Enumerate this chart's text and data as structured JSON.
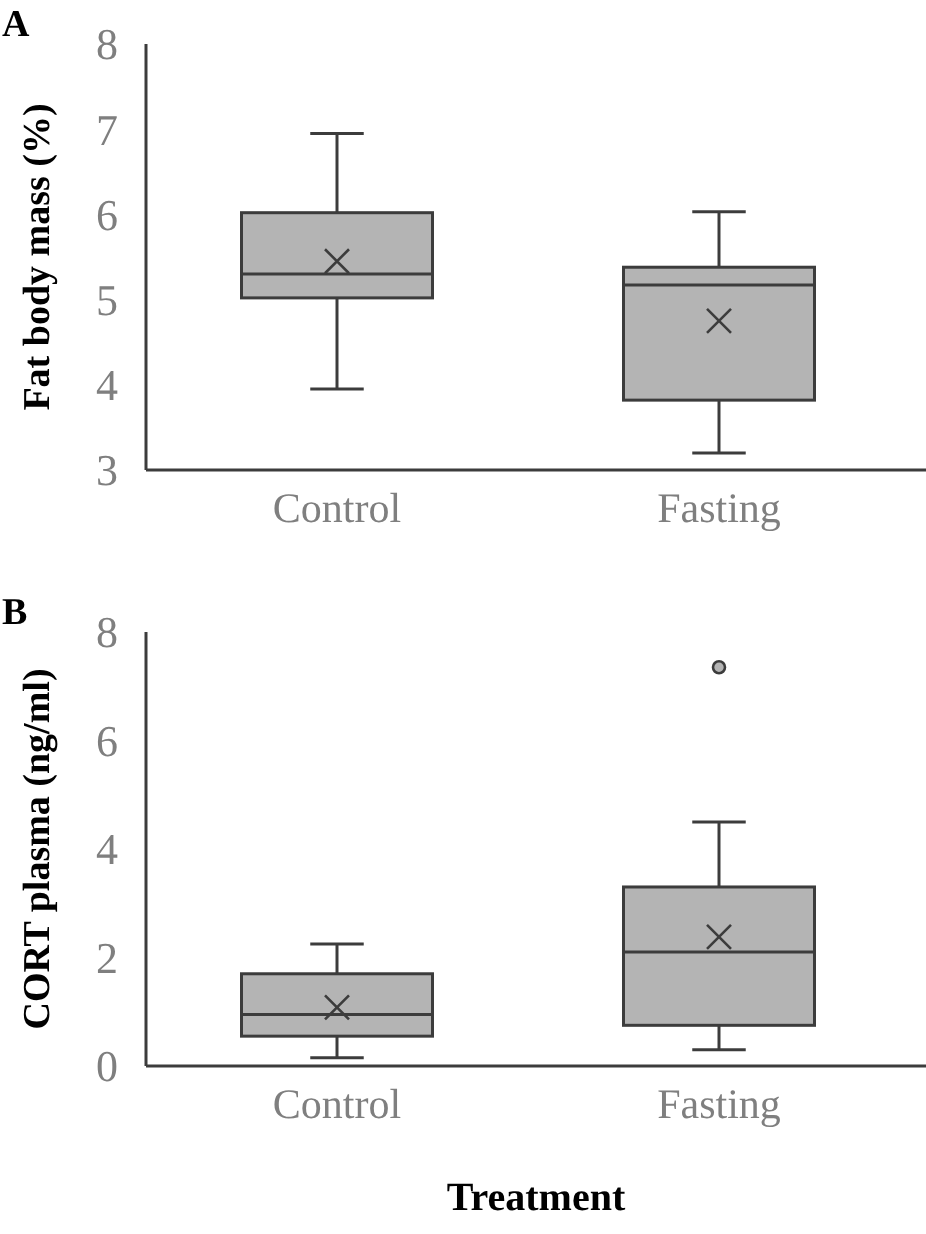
{
  "chart_data": [
    {
      "type": "box",
      "annotations": [
        "A"
      ],
      "ylabel": "Fat body mass (%)",
      "categories": [
        "Control",
        "Fasting"
      ],
      "ylim": [
        3,
        8
      ],
      "yticks": [
        3,
        4,
        5,
        6,
        7,
        8
      ],
      "grid": false,
      "color": "#b4b4b4",
      "boxes": [
        {
          "low": 3.95,
          "q1": 5.02,
          "median": 5.3,
          "q3": 6.02,
          "high": 6.95,
          "mean": 5.45
        },
        {
          "low": 3.2,
          "q1": 3.82,
          "median": 5.17,
          "q3": 5.38,
          "high": 6.03,
          "mean": 4.75
        }
      ]
    },
    {
      "type": "box",
      "annotations": [
        "B"
      ],
      "ylabel": "CORT plasma (ng/ml)",
      "xlabel": "Treatment",
      "categories": [
        "Control",
        "Fasting"
      ],
      "ylim": [
        0,
        8
      ],
      "yticks": [
        0,
        2,
        4,
        6,
        8
      ],
      "grid": false,
      "color": "#b4b4b4",
      "boxes": [
        {
          "low": 0.15,
          "q1": 0.55,
          "median": 0.95,
          "q3": 1.7,
          "high": 2.25,
          "mean": 1.08
        },
        {
          "low": 0.3,
          "q1": 0.75,
          "median": 2.1,
          "q3": 3.3,
          "high": 4.5,
          "mean": 2.38,
          "outliers": [
            7.35
          ]
        }
      ]
    }
  ]
}
